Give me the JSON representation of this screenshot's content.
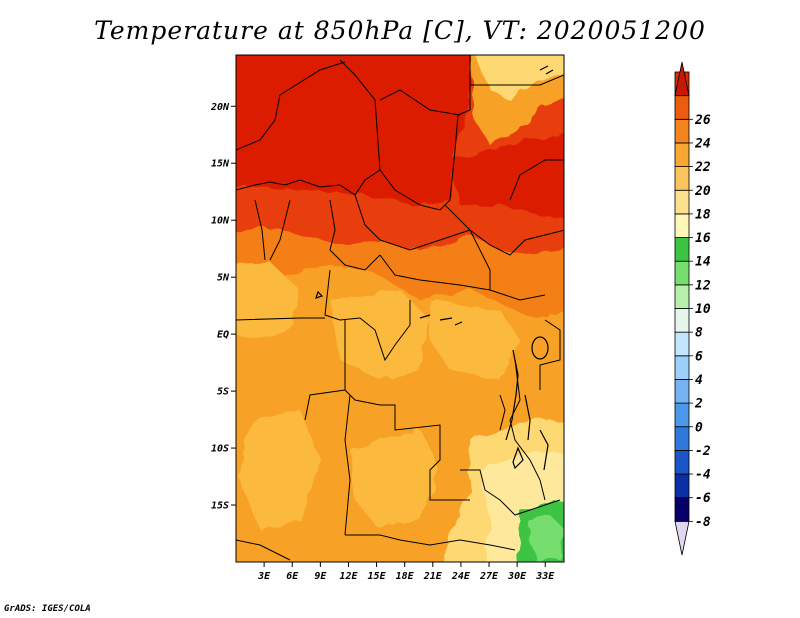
{
  "title": "Temperature at 850hPa [C], VT: 2020051200",
  "credit": "GrADS: IGES/COLA",
  "map": {
    "lon_range": [
      0,
      35
    ],
    "lat_range": [
      -20,
      24.5
    ],
    "lat_ticks": [
      {
        "label": "20N",
        "lat": 20
      },
      {
        "label": "15N",
        "lat": 15
      },
      {
        "label": "10N",
        "lat": 10
      },
      {
        "label": "5N",
        "lat": 5
      },
      {
        "label": "EQ",
        "lat": 0
      },
      {
        "label": "5S",
        "lat": -5
      },
      {
        "label": "10S",
        "lat": -10
      },
      {
        "label": "15S",
        "lat": -15
      }
    ],
    "lon_ticks": [
      {
        "label": "3E",
        "lon": 3
      },
      {
        "label": "6E",
        "lon": 6
      },
      {
        "label": "9E",
        "lon": 9
      },
      {
        "label": "12E",
        "lon": 12
      },
      {
        "label": "15E",
        "lon": 15
      },
      {
        "label": "18E",
        "lon": 18
      },
      {
        "label": "21E",
        "lon": 21
      },
      {
        "label": "24E",
        "lon": 24
      },
      {
        "label": "27E",
        "lon": 27
      },
      {
        "label": "30E",
        "lon": 30
      },
      {
        "label": "33E",
        "lon": 33
      }
    ]
  },
  "colorbar": {
    "levels": [
      "-8",
      "-6",
      "-4",
      "-2",
      "0",
      "2",
      "4",
      "6",
      "8",
      "10",
      "12",
      "14",
      "16",
      "18",
      "20",
      "22",
      "24",
      "26"
    ],
    "colors": [
      "#e0d8f0",
      "#08006a",
      "#0a2fa8",
      "#1c55c8",
      "#2f78dc",
      "#4c98ea",
      "#74b4f2",
      "#9cd0fa",
      "#c2e6fd",
      "#e6f6ec",
      "#b6f0aa",
      "#76de6e",
      "#3cc443",
      "#fff7b8",
      "#fde08c",
      "#fcc45c",
      "#faa632",
      "#f4841c",
      "#ec5c0c",
      "#dc2a06",
      "#c81808"
    ]
  },
  "temperature_regions": [
    {
      "name": "sahara-west",
      "value": 25,
      "color": "#dc1e06"
    },
    {
      "name": "sahel-belt",
      "value": 24,
      "color": "#e83c08"
    },
    {
      "name": "central-band",
      "value": 22,
      "color": "#f47f12"
    },
    {
      "name": "congo-basin",
      "value": 21,
      "color": "#f7a126"
    },
    {
      "name": "angola-plateau",
      "value": 20,
      "color": "#fbb93c"
    },
    {
      "name": "ethiopian-highland",
      "value": 18,
      "color": "#fed873"
    },
    {
      "name": "zambia-plateau",
      "value": 17,
      "color": "#fde89c"
    },
    {
      "name": "zimbabwe-highland",
      "value": 13,
      "color": "#3cc443"
    }
  ]
}
